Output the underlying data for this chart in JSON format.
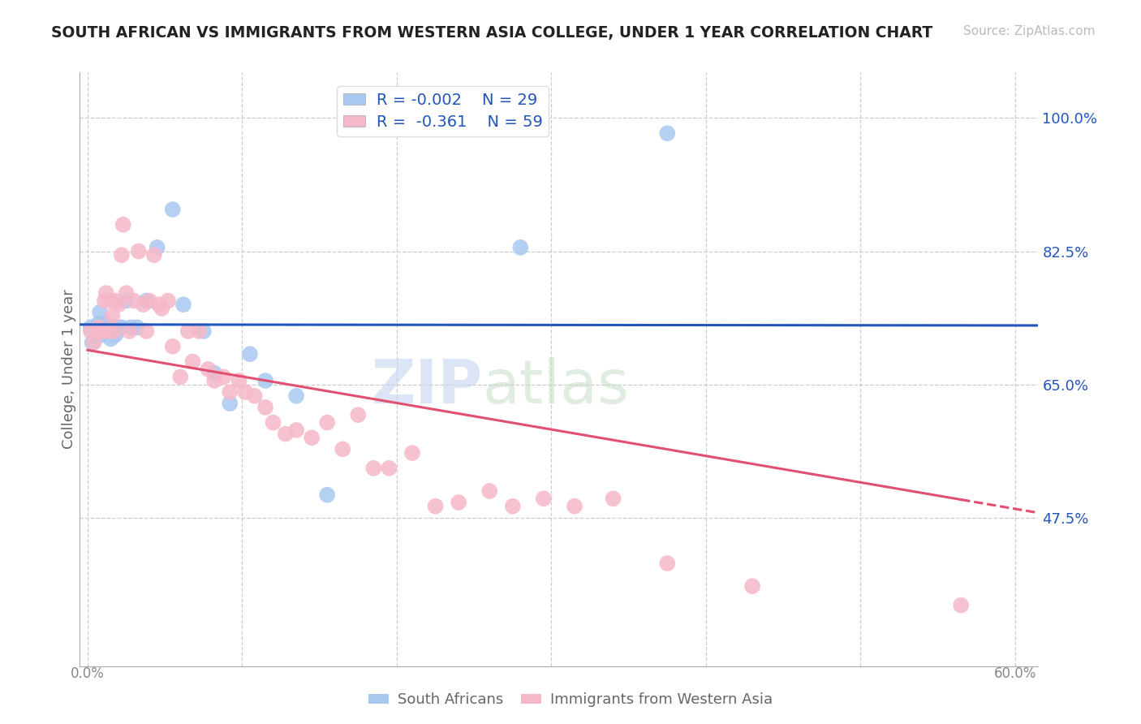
{
  "title": "SOUTH AFRICAN VS IMMIGRANTS FROM WESTERN ASIA COLLEGE, UNDER 1 YEAR CORRELATION CHART",
  "source": "Source: ZipAtlas.com",
  "ylabel": "College, Under 1 year",
  "ytick_labels": [
    "100.0%",
    "82.5%",
    "65.0%",
    "47.5%"
  ],
  "ytick_values": [
    1.0,
    0.825,
    0.65,
    0.475
  ],
  "xlim": [
    -0.005,
    0.615
  ],
  "ylim": [
    0.28,
    1.06
  ],
  "blue_color": "#a8c8f0",
  "pink_color": "#f5b8c8",
  "blue_line_color": "#2255bb",
  "pink_line_color": "#e05070",
  "watermark_zip": "ZIP",
  "watermark_atlas": "atlas",
  "blue_r": -0.002,
  "blue_n": 29,
  "pink_r": -0.361,
  "pink_n": 59,
  "blue_x": [
    0.002,
    0.003,
    0.007,
    0.008,
    0.009,
    0.012,
    0.013,
    0.015,
    0.016,
    0.017,
    0.018,
    0.02,
    0.022,
    0.025,
    0.028,
    0.032,
    0.038,
    0.045,
    0.055,
    0.062,
    0.075,
    0.082,
    0.092,
    0.105,
    0.115,
    0.135,
    0.155,
    0.28,
    0.375
  ],
  "blue_y": [
    0.725,
    0.705,
    0.73,
    0.745,
    0.715,
    0.72,
    0.73,
    0.71,
    0.725,
    0.72,
    0.715,
    0.725,
    0.725,
    0.76,
    0.725,
    0.725,
    0.76,
    0.83,
    0.88,
    0.755,
    0.72,
    0.665,
    0.625,
    0.69,
    0.655,
    0.635,
    0.505,
    0.83,
    0.98
  ],
  "pink_x": [
    0.002,
    0.004,
    0.007,
    0.008,
    0.01,
    0.011,
    0.012,
    0.013,
    0.015,
    0.016,
    0.017,
    0.018,
    0.02,
    0.022,
    0.023,
    0.025,
    0.027,
    0.03,
    0.033,
    0.036,
    0.038,
    0.04,
    0.043,
    0.046,
    0.048,
    0.052,
    0.055,
    0.06,
    0.065,
    0.068,
    0.072,
    0.078,
    0.082,
    0.088,
    0.092,
    0.098,
    0.102,
    0.108,
    0.115,
    0.12,
    0.128,
    0.135,
    0.145,
    0.155,
    0.165,
    0.175,
    0.185,
    0.195,
    0.21,
    0.225,
    0.24,
    0.26,
    0.275,
    0.295,
    0.315,
    0.34,
    0.375,
    0.43,
    0.565
  ],
  "pink_y": [
    0.72,
    0.705,
    0.725,
    0.72,
    0.72,
    0.76,
    0.77,
    0.72,
    0.76,
    0.74,
    0.72,
    0.76,
    0.755,
    0.82,
    0.86,
    0.77,
    0.72,
    0.76,
    0.825,
    0.755,
    0.72,
    0.76,
    0.82,
    0.755,
    0.75,
    0.76,
    0.7,
    0.66,
    0.72,
    0.68,
    0.72,
    0.67,
    0.655,
    0.66,
    0.64,
    0.655,
    0.64,
    0.635,
    0.62,
    0.6,
    0.585,
    0.59,
    0.58,
    0.6,
    0.565,
    0.61,
    0.54,
    0.54,
    0.56,
    0.49,
    0.495,
    0.51,
    0.49,
    0.5,
    0.49,
    0.5,
    0.415,
    0.385,
    0.36
  ],
  "grid_x": [
    0.0,
    0.1,
    0.2,
    0.3,
    0.4,
    0.5,
    0.6
  ],
  "xtick_left_label": "0.0%",
  "xtick_right_label": "60.0%"
}
